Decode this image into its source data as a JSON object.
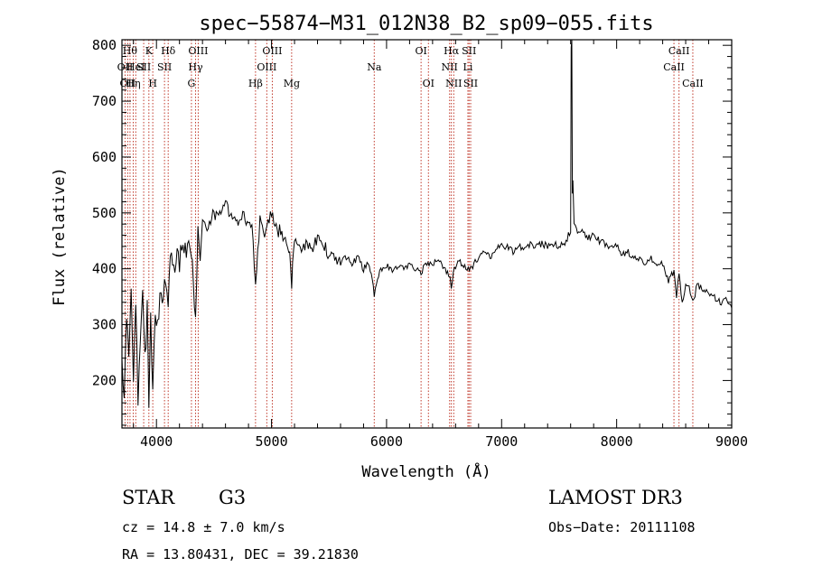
{
  "chart_data": {
    "type": "line",
    "title": "spec−55874−M31_012N38_B2_sp09−055.fits",
    "xlabel": "Wavelength (Å)",
    "ylabel": "Flux (relative)",
    "xlim": [
      3700,
      9000
    ],
    "ylim": [
      115,
      810
    ],
    "xticks": [
      4000,
      5000,
      6000,
      7000,
      8000,
      9000
    ],
    "xtick_labels": [
      "4000",
      "5000",
      "6000",
      "7000",
      "8000",
      "9000"
    ],
    "yticks": [
      200,
      300,
      400,
      500,
      600,
      700,
      800
    ],
    "ytick_labels": [
      "200",
      "300",
      "400",
      "500",
      "600",
      "700",
      "800"
    ],
    "grid": false,
    "series": [
      {
        "name": "spectrum",
        "color": "#000000",
        "x": [
          3700,
          3720,
          3740,
          3760,
          3780,
          3800,
          3820,
          3840,
          3860,
          3880,
          3900,
          3920,
          3934,
          3950,
          3968,
          3990,
          4010,
          4040,
          4060,
          4080,
          4102,
          4120,
          4150,
          4180,
          4200,
          4230,
          4260,
          4290,
          4304,
          4320,
          4340,
          4360,
          4380,
          4400,
          4450,
          4500,
          4550,
          4600,
          4650,
          4700,
          4750,
          4800,
          4830,
          4861,
          4900,
          4950,
          5000,
          5050,
          5100,
          5150,
          5175,
          5200,
          5250,
          5300,
          5350,
          5400,
          5450,
          5500,
          5550,
          5600,
          5650,
          5700,
          5750,
          5800,
          5850,
          5893,
          5950,
          6000,
          6050,
          6100,
          6150,
          6200,
          6250,
          6300,
          6350,
          6400,
          6450,
          6500,
          6540,
          6563,
          6590,
          6620,
          6650,
          6700,
          6750,
          6800,
          6850,
          6900,
          6950,
          7000,
          7050,
          7100,
          7150,
          7200,
          7250,
          7300,
          7350,
          7400,
          7450,
          7500,
          7550,
          7580,
          7600,
          7605,
          7610,
          7615,
          7620,
          7630,
          7650,
          7700,
          7750,
          7800,
          7850,
          7900,
          7950,
          8000,
          8050,
          8100,
          8150,
          8200,
          8250,
          8300,
          8350,
          8400,
          8450,
          8498,
          8520,
          8542,
          8570,
          8600,
          8630,
          8662,
          8700,
          8750,
          8800,
          8850,
          8900,
          8950,
          9000
        ],
        "values": [
          260,
          150,
          330,
          240,
          370,
          200,
          330,
          170,
          280,
          360,
          230,
          330,
          165,
          300,
          170,
          320,
          290,
          360,
          340,
          380,
          320,
          420,
          400,
          440,
          410,
          450,
          420,
          460,
          430,
          380,
          300,
          470,
          420,
          490,
          480,
          500,
          490,
          510,
          500,
          480,
          500,
          470,
          480,
          380,
          490,
          460,
          500,
          470,
          460,
          440,
          370,
          460,
          430,
          450,
          440,
          450,
          440,
          430,
          420,
          410,
          420,
          410,
          420,
          400,
          410,
          355,
          400,
          405,
          395,
          405,
          400,
          410,
          400,
          395,
          410,
          405,
          420,
          400,
          390,
          370,
          400,
          415,
          410,
          400,
          405,
          420,
          430,
          420,
          435,
          440,
          440,
          430,
          440,
          435,
          445,
          440,
          445,
          440,
          445,
          440,
          445,
          460,
          470,
          800,
          810,
          530,
          560,
          480,
          470,
          465,
          455,
          460,
          450,
          445,
          440,
          440,
          425,
          430,
          420,
          415,
          410,
          420,
          400,
          410,
          380,
          395,
          350,
          395,
          335,
          375,
          370,
          340,
          370,
          365,
          355,
          350,
          340,
          345,
          330
        ]
      }
    ],
    "lines": [
      {
        "x": 3727,
        "label": "OII",
        "row": 1
      },
      {
        "x": 3750,
        "label": "OII",
        "row": 2
      },
      {
        "x": 3770,
        "label": "Hθ",
        "row": 0
      },
      {
        "x": 3798,
        "label": "Hη",
        "row": 2
      },
      {
        "x": 3820,
        "label": "HeI",
        "row": 1
      },
      {
        "x": 3889,
        "label": "SII",
        "row": 1
      },
      {
        "x": 3934,
        "label": "K",
        "row": 0
      },
      {
        "x": 3968,
        "label": "H",
        "row": 2
      },
      {
        "x": 4070,
        "label": "SII",
        "row": 1
      },
      {
        "x": 4102,
        "label": "Hδ",
        "row": 0
      },
      {
        "x": 4304,
        "label": "G",
        "row": 2
      },
      {
        "x": 4340,
        "label": "Hγ",
        "row": 1
      },
      {
        "x": 4363,
        "label": "OIII",
        "row": 0
      },
      {
        "x": 4861,
        "label": "Hβ",
        "row": 2
      },
      {
        "x": 4959,
        "label": "OIII",
        "row": 1
      },
      {
        "x": 5007,
        "label": "OIII",
        "row": 0
      },
      {
        "x": 5175,
        "label": "Mg",
        "row": 2
      },
      {
        "x": 5893,
        "label": "Na",
        "row": 1
      },
      {
        "x": 6300,
        "label": "OI",
        "row": 0
      },
      {
        "x": 6364,
        "label": "OI",
        "row": 2
      },
      {
        "x": 6548,
        "label": "NII",
        "row": 1
      },
      {
        "x": 6563,
        "label": "Hα",
        "row": 0
      },
      {
        "x": 6584,
        "label": "NII",
        "row": 2
      },
      {
        "x": 6707,
        "label": "Li",
        "row": 1
      },
      {
        "x": 6717,
        "label": "SII",
        "row": 0
      },
      {
        "x": 6731,
        "label": "SII",
        "row": 2
      },
      {
        "x": 8498,
        "label": "CaII",
        "row": 1
      },
      {
        "x": 8542,
        "label": "CaII",
        "row": 0
      },
      {
        "x": 8662,
        "label": "CaII",
        "row": 2
      }
    ]
  },
  "info": {
    "class": "STAR",
    "subclass": "G3",
    "survey": "LAMOST DR3",
    "cz": "cz = 14.8 ± 7.0 km/s",
    "obs_date": "Obs−Date: 20111108",
    "radec": "RA =  13.80431, DEC =  39.21830"
  }
}
